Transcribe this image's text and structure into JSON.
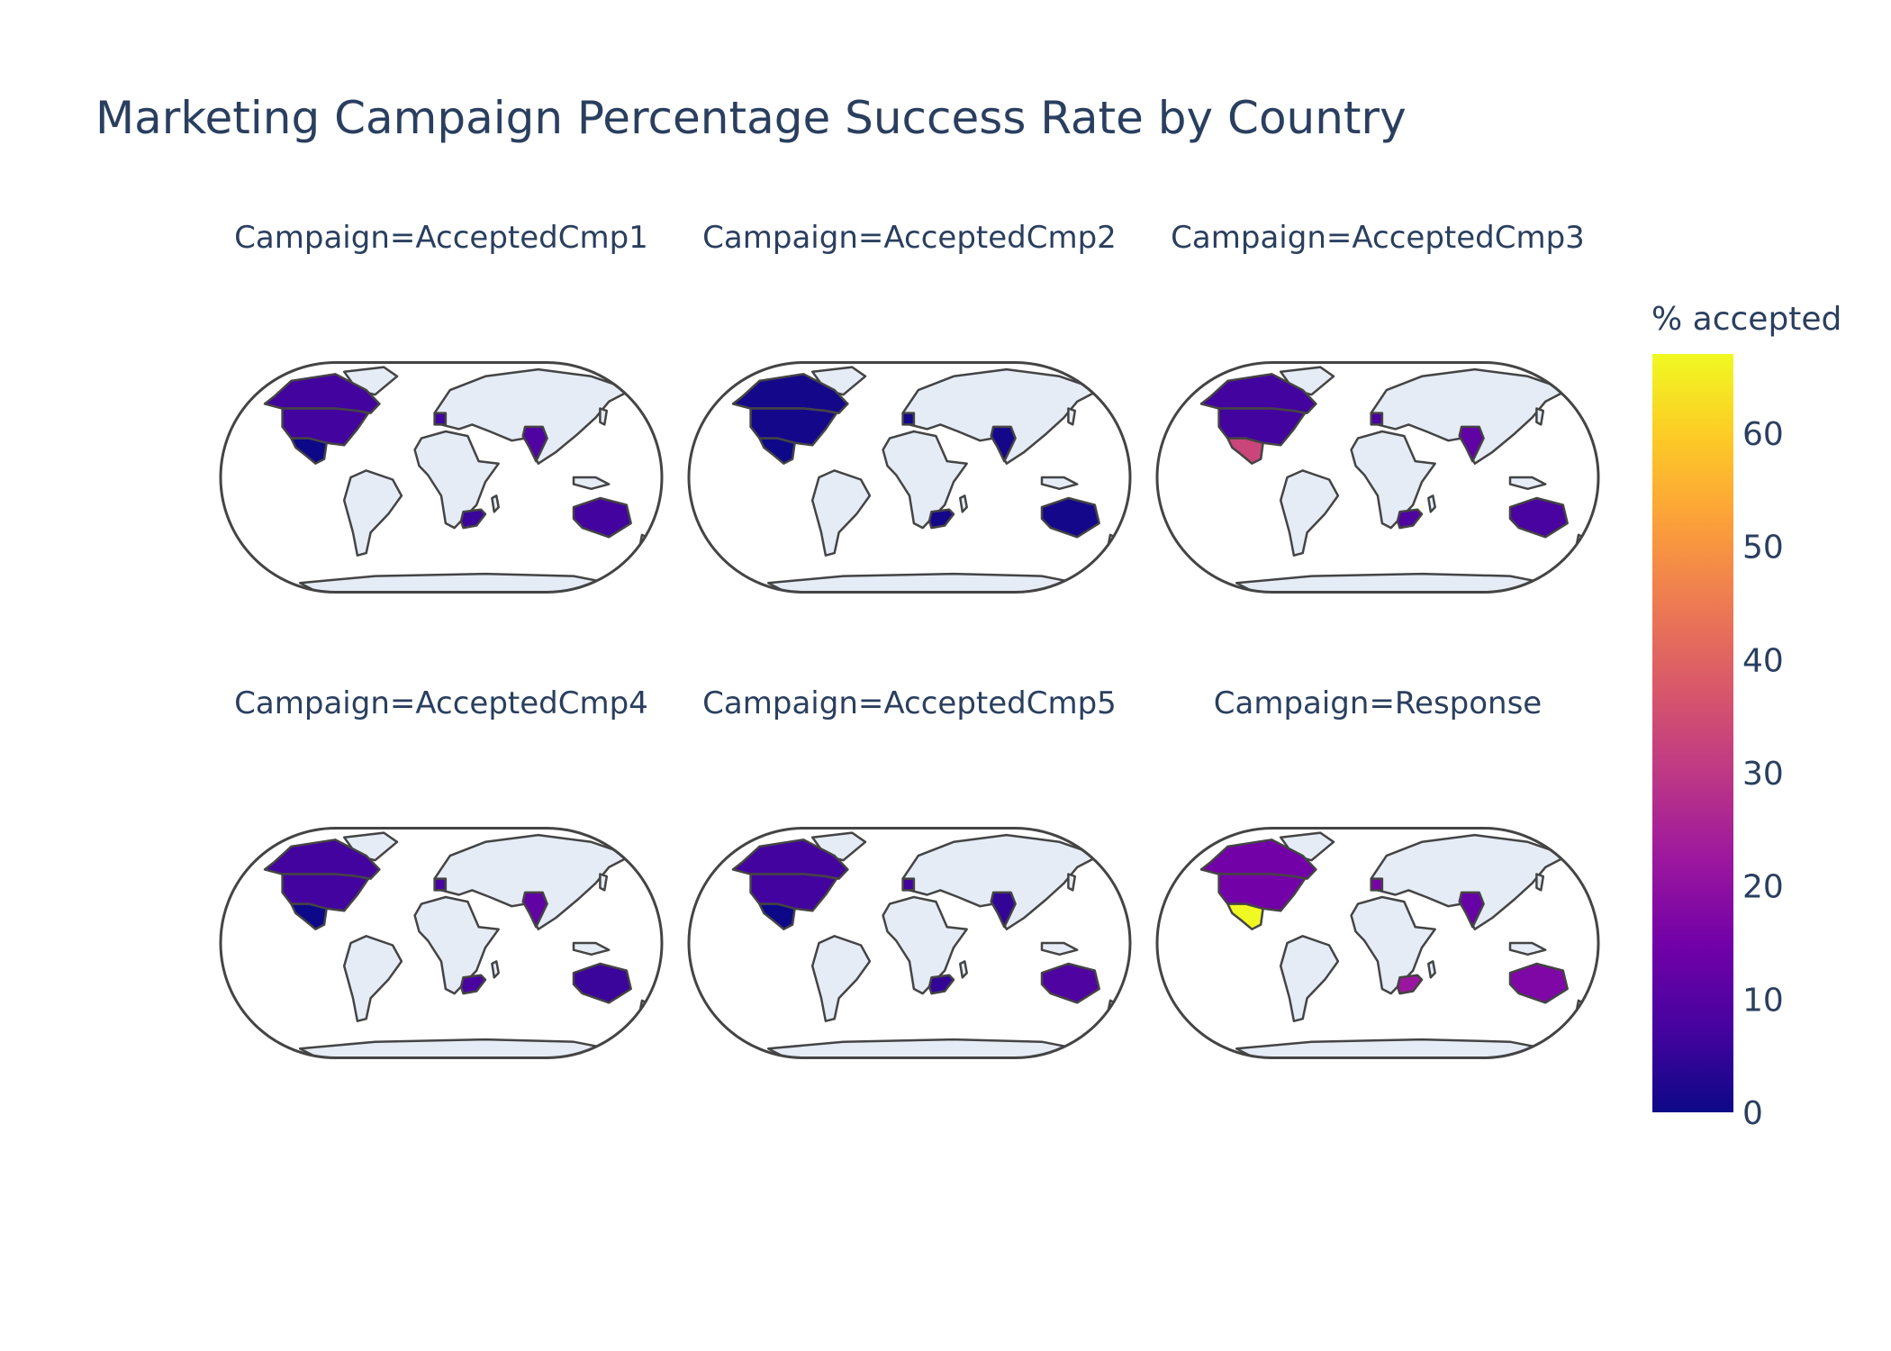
{
  "chart_data": {
    "type": "choropleth",
    "title": "Marketing Campaign Percentage Success Rate by Country",
    "colorbar": {
      "title": "% accepted",
      "range": [
        0,
        67
      ],
      "ticks": [
        0,
        10,
        20,
        30,
        40,
        50,
        60
      ],
      "colorscale": [
        "#0d0887",
        "#46039f",
        "#7201a8",
        "#9c179e",
        "#bd3786",
        "#d8576b",
        "#ed7953",
        "#fb9f3a",
        "#fdca26",
        "#f0f921"
      ]
    },
    "countries": [
      "USA",
      "Canada",
      "Mexico",
      "Spain",
      "India",
      "South Africa",
      "Australia"
    ],
    "facets": [
      {
        "label": "Campaign=AcceptedCmp1",
        "values": {
          "USA": 7,
          "Canada": 7,
          "Mexico": 0,
          "Spain": 7,
          "India": 9,
          "South Africa": 6,
          "Australia": 7
        }
      },
      {
        "label": "Campaign=AcceptedCmp2",
        "values": {
          "USA": 1,
          "Canada": 1,
          "Mexico": 0,
          "Spain": 1,
          "India": 1,
          "South Africa": 1,
          "Australia": 1
        }
      },
      {
        "label": "Campaign=AcceptedCmp3",
        "values": {
          "USA": 7,
          "Canada": 7,
          "Mexico": 33,
          "Spain": 8,
          "India": 12,
          "South Africa": 9,
          "Australia": 8
        }
      },
      {
        "label": "Campaign=AcceptedCmp4",
        "values": {
          "USA": 7,
          "Canada": 7,
          "Mexico": 0,
          "Spain": 8,
          "India": 12,
          "South Africa": 8,
          "Australia": 6
        }
      },
      {
        "label": "Campaign=AcceptedCmp5",
        "values": {
          "USA": 7,
          "Canada": 7,
          "Mexico": 0,
          "Spain": 7,
          "India": 5,
          "South Africa": 5,
          "Australia": 9
        }
      },
      {
        "label": "Campaign=Response",
        "values": {
          "USA": 15,
          "Canada": 15,
          "Mexico": 67,
          "Spain": 16,
          "India": 13,
          "South Africa": 22,
          "Australia": 17
        }
      }
    ]
  }
}
